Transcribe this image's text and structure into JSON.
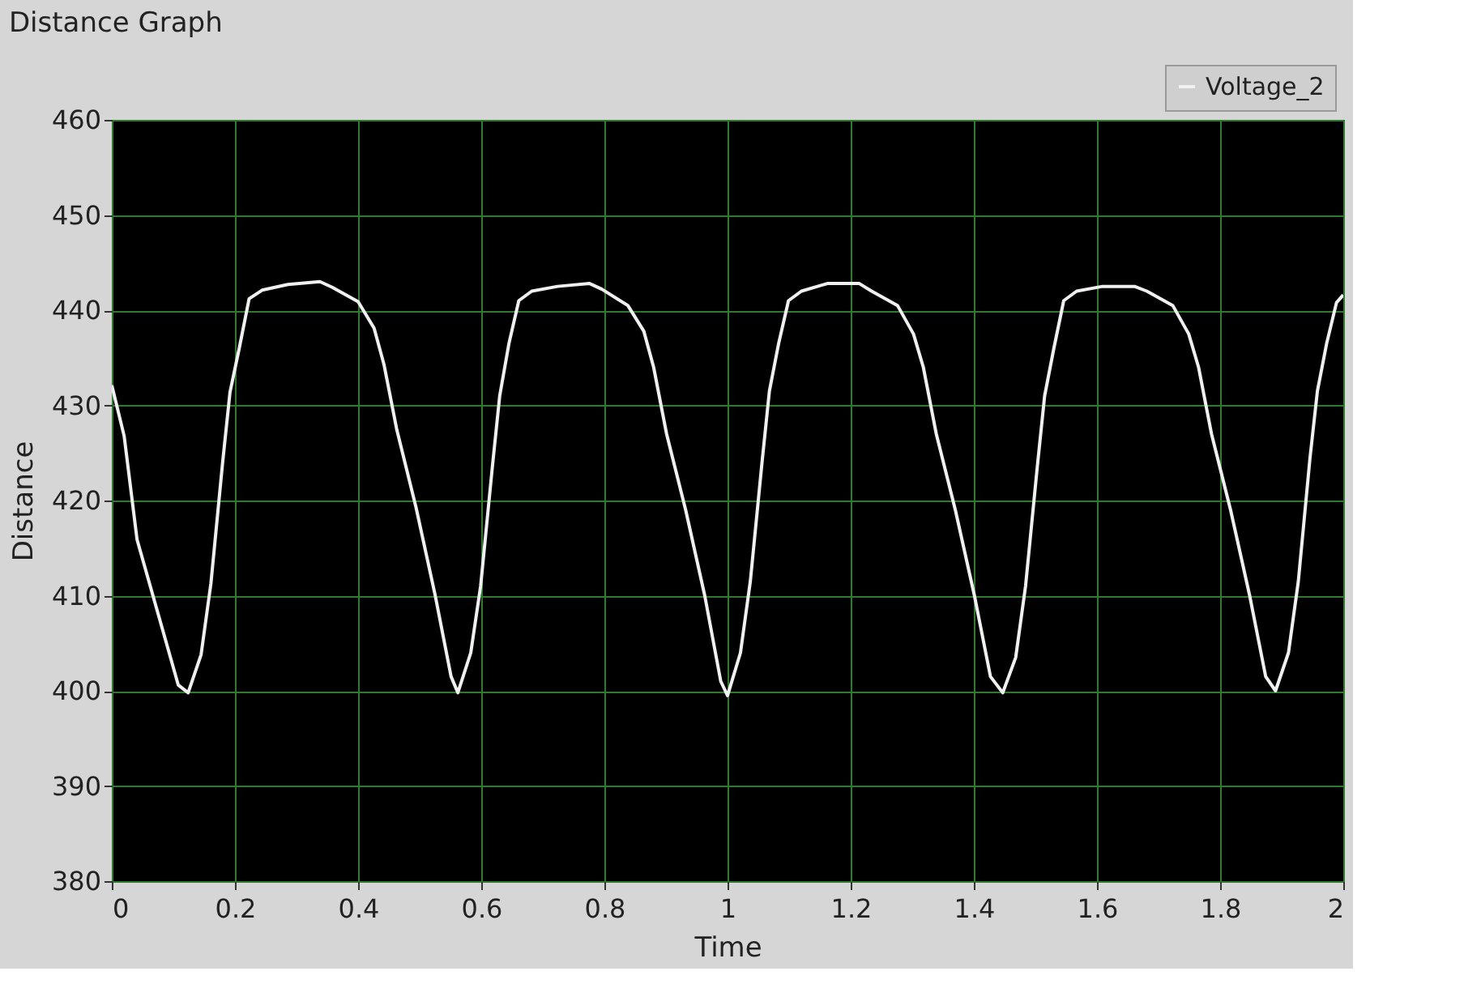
{
  "chart_data": {
    "type": "line",
    "title": "Distance Graph",
    "xlabel": "Time",
    "ylabel": "Distance",
    "xlim": [
      0,
      2
    ],
    "xticks": [
      0,
      0.2,
      0.4,
      0.6,
      0.8,
      1,
      1.2,
      1.4,
      1.6,
      1.8,
      2
    ],
    "ylim": [
      380,
      460
    ],
    "yticks": [
      380,
      390,
      400,
      410,
      420,
      430,
      440,
      450,
      460
    ],
    "grid": true,
    "legend": "top right",
    "marker": "none",
    "line_style": "solid",
    "series": [
      {
        "name": "Voltage_2",
        "color": "#f0f0f0",
        "x": [
          0,
          0.02,
          0.041,
          0.108,
          0.124,
          0.145,
          0.161,
          0.18,
          0.192,
          0.207,
          0.223,
          0.244,
          0.286,
          0.338,
          0.358,
          0.4,
          0.426,
          0.442,
          0.463,
          0.494,
          0.525,
          0.551,
          0.562,
          0.583,
          0.599,
          0.618,
          0.63,
          0.645,
          0.661,
          0.682,
          0.724,
          0.776,
          0.796,
          0.838,
          0.864,
          0.88,
          0.901,
          0.932,
          0.963,
          0.989,
          1.0,
          1.021,
          1.037,
          1.056,
          1.068,
          1.083,
          1.099,
          1.12,
          1.162,
          1.214,
          1.234,
          1.276,
          1.302,
          1.318,
          1.339,
          1.37,
          1.401,
          1.427,
          1.447,
          1.468,
          1.484,
          1.503,
          1.515,
          1.53,
          1.546,
          1.567,
          1.609,
          1.661,
          1.681,
          1.723,
          1.749,
          1.765,
          1.786,
          1.817,
          1.848,
          1.874,
          1.89,
          1.911,
          1.927,
          1.946,
          1.958,
          1.973,
          1.989,
          2.0
        ],
        "values": [
          432.1,
          426.8,
          415.9,
          400.6,
          399.8,
          403.8,
          411.3,
          424,
          431.4,
          436,
          441.2,
          442.1,
          442.7,
          443,
          442.4,
          440.9,
          438.1,
          434.3,
          427.4,
          419.3,
          410.1,
          401.5,
          399.8,
          404,
          411,
          423.5,
          431,
          436.5,
          441,
          442,
          442.5,
          442.8,
          442.2,
          440.5,
          437.8,
          434,
          427,
          419,
          410,
          401,
          399.5,
          404,
          411.5,
          424,
          431.5,
          436.5,
          441,
          442,
          442.8,
          442.8,
          442,
          440.5,
          437.5,
          434,
          427,
          419,
          410,
          401.5,
          399.8,
          403.5,
          411,
          423.5,
          431,
          436,
          441,
          442,
          442.5,
          442.5,
          442,
          440.5,
          437.5,
          434,
          427,
          419,
          410,
          401.5,
          400,
          404,
          411.5,
          424.5,
          431.5,
          436.5,
          440.8,
          441.6
        ]
      }
    ]
  }
}
